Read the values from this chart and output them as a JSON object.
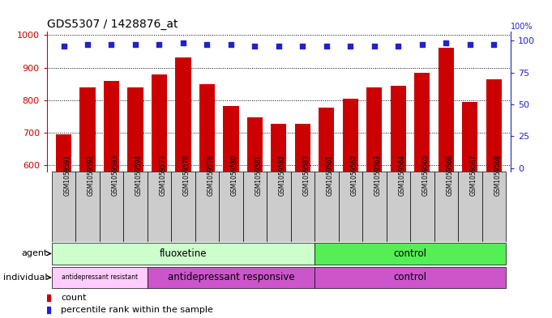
{
  "title": "GDS5307 / 1428876_at",
  "samples": [
    "GSM1059591",
    "GSM1059592",
    "GSM1059593",
    "GSM1059594",
    "GSM1059577",
    "GSM1059578",
    "GSM1059579",
    "GSM1059580",
    "GSM1059581",
    "GSM1059582",
    "GSM1059583",
    "GSM1059561",
    "GSM1059562",
    "GSM1059563",
    "GSM1059564",
    "GSM1059565",
    "GSM1059566",
    "GSM1059567",
    "GSM1059568"
  ],
  "count_values": [
    695,
    840,
    858,
    838,
    880,
    932,
    848,
    782,
    748,
    728,
    727,
    778,
    805,
    838,
    843,
    884,
    960,
    795,
    865
  ],
  "percentile_values": [
    96,
    97,
    97,
    97,
    97,
    98,
    97,
    97,
    96,
    96,
    96,
    96,
    96,
    96,
    96,
    97,
    98,
    97,
    97
  ],
  "ylim_left": [
    580,
    1010
  ],
  "ylim_right": [
    -3,
    107
  ],
  "yticks_left": [
    600,
    700,
    800,
    900,
    1000
  ],
  "yticks_right": [
    0,
    25,
    50,
    75,
    100
  ],
  "bar_color": "#cc0000",
  "dot_color": "#2222cc",
  "grid_color": "#000000",
  "left_axis_color": "#cc0000",
  "right_axis_color": "#2222cc",
  "agent_groups": [
    {
      "label": "fluoxetine",
      "start": 0,
      "end": 11,
      "color": "#ccffcc"
    },
    {
      "label": "control",
      "start": 11,
      "end": 19,
      "color": "#55ee55"
    }
  ],
  "individual_groups": [
    {
      "label": "antidepressant resistant",
      "start": 0,
      "end": 4,
      "color": "#ffccff"
    },
    {
      "label": "antidepressant responsive",
      "start": 4,
      "end": 11,
      "color": "#cc55cc"
    },
    {
      "label": "control",
      "start": 11,
      "end": 19,
      "color": "#cc55cc"
    }
  ],
  "individual_colors": [
    "#ffccff",
    "#cc55cc",
    "#cc55cc"
  ],
  "xtick_bg_color": "#cccccc",
  "legend_count_color": "#cc0000",
  "legend_pct_color": "#2222cc"
}
